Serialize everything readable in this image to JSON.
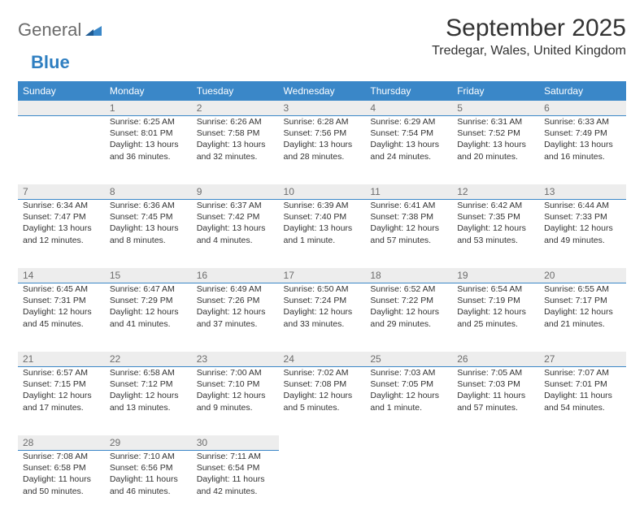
{
  "logo": {
    "word1": "General",
    "word2": "Blue",
    "word1_color": "#6b6b6b",
    "word2_color": "#2f7fc1",
    "mark_color": "#3a87c8"
  },
  "header": {
    "month_title": "September 2025",
    "location": "Tredegar, Wales, United Kingdom"
  },
  "styling": {
    "header_bg": "#3a87c8",
    "header_text_color": "#ffffff",
    "date_bg": "#ededed",
    "date_border_color": "#3a87c8",
    "date_text_color": "#6d6d6d",
    "body_text_color": "#333333",
    "page_bg": "#ffffff",
    "font_family": "Arial",
    "month_title_fontsize": 30,
    "location_fontsize": 16,
    "weekday_fontsize": 12,
    "cell_fontsize": 10.5
  },
  "weekdays": [
    "Sunday",
    "Monday",
    "Tuesday",
    "Wednesday",
    "Thursday",
    "Friday",
    "Saturday"
  ],
  "weeks": [
    [
      {
        "date": "",
        "sunrise": "",
        "sunset": "",
        "daylight": ""
      },
      {
        "date": "1",
        "sunrise": "Sunrise: 6:25 AM",
        "sunset": "Sunset: 8:01 PM",
        "daylight": "Daylight: 13 hours and 36 minutes."
      },
      {
        "date": "2",
        "sunrise": "Sunrise: 6:26 AM",
        "sunset": "Sunset: 7:58 PM",
        "daylight": "Daylight: 13 hours and 32 minutes."
      },
      {
        "date": "3",
        "sunrise": "Sunrise: 6:28 AM",
        "sunset": "Sunset: 7:56 PM",
        "daylight": "Daylight: 13 hours and 28 minutes."
      },
      {
        "date": "4",
        "sunrise": "Sunrise: 6:29 AM",
        "sunset": "Sunset: 7:54 PM",
        "daylight": "Daylight: 13 hours and 24 minutes."
      },
      {
        "date": "5",
        "sunrise": "Sunrise: 6:31 AM",
        "sunset": "Sunset: 7:52 PM",
        "daylight": "Daylight: 13 hours and 20 minutes."
      },
      {
        "date": "6",
        "sunrise": "Sunrise: 6:33 AM",
        "sunset": "Sunset: 7:49 PM",
        "daylight": "Daylight: 13 hours and 16 minutes."
      }
    ],
    [
      {
        "date": "7",
        "sunrise": "Sunrise: 6:34 AM",
        "sunset": "Sunset: 7:47 PM",
        "daylight": "Daylight: 13 hours and 12 minutes."
      },
      {
        "date": "8",
        "sunrise": "Sunrise: 6:36 AM",
        "sunset": "Sunset: 7:45 PM",
        "daylight": "Daylight: 13 hours and 8 minutes."
      },
      {
        "date": "9",
        "sunrise": "Sunrise: 6:37 AM",
        "sunset": "Sunset: 7:42 PM",
        "daylight": "Daylight: 13 hours and 4 minutes."
      },
      {
        "date": "10",
        "sunrise": "Sunrise: 6:39 AM",
        "sunset": "Sunset: 7:40 PM",
        "daylight": "Daylight: 13 hours and 1 minute."
      },
      {
        "date": "11",
        "sunrise": "Sunrise: 6:41 AM",
        "sunset": "Sunset: 7:38 PM",
        "daylight": "Daylight: 12 hours and 57 minutes."
      },
      {
        "date": "12",
        "sunrise": "Sunrise: 6:42 AM",
        "sunset": "Sunset: 7:35 PM",
        "daylight": "Daylight: 12 hours and 53 minutes."
      },
      {
        "date": "13",
        "sunrise": "Sunrise: 6:44 AM",
        "sunset": "Sunset: 7:33 PM",
        "daylight": "Daylight: 12 hours and 49 minutes."
      }
    ],
    [
      {
        "date": "14",
        "sunrise": "Sunrise: 6:45 AM",
        "sunset": "Sunset: 7:31 PM",
        "daylight": "Daylight: 12 hours and 45 minutes."
      },
      {
        "date": "15",
        "sunrise": "Sunrise: 6:47 AM",
        "sunset": "Sunset: 7:29 PM",
        "daylight": "Daylight: 12 hours and 41 minutes."
      },
      {
        "date": "16",
        "sunrise": "Sunrise: 6:49 AM",
        "sunset": "Sunset: 7:26 PM",
        "daylight": "Daylight: 12 hours and 37 minutes."
      },
      {
        "date": "17",
        "sunrise": "Sunrise: 6:50 AM",
        "sunset": "Sunset: 7:24 PM",
        "daylight": "Daylight: 12 hours and 33 minutes."
      },
      {
        "date": "18",
        "sunrise": "Sunrise: 6:52 AM",
        "sunset": "Sunset: 7:22 PM",
        "daylight": "Daylight: 12 hours and 29 minutes."
      },
      {
        "date": "19",
        "sunrise": "Sunrise: 6:54 AM",
        "sunset": "Sunset: 7:19 PM",
        "daylight": "Daylight: 12 hours and 25 minutes."
      },
      {
        "date": "20",
        "sunrise": "Sunrise: 6:55 AM",
        "sunset": "Sunset: 7:17 PM",
        "daylight": "Daylight: 12 hours and 21 minutes."
      }
    ],
    [
      {
        "date": "21",
        "sunrise": "Sunrise: 6:57 AM",
        "sunset": "Sunset: 7:15 PM",
        "daylight": "Daylight: 12 hours and 17 minutes."
      },
      {
        "date": "22",
        "sunrise": "Sunrise: 6:58 AM",
        "sunset": "Sunset: 7:12 PM",
        "daylight": "Daylight: 12 hours and 13 minutes."
      },
      {
        "date": "23",
        "sunrise": "Sunrise: 7:00 AM",
        "sunset": "Sunset: 7:10 PM",
        "daylight": "Daylight: 12 hours and 9 minutes."
      },
      {
        "date": "24",
        "sunrise": "Sunrise: 7:02 AM",
        "sunset": "Sunset: 7:08 PM",
        "daylight": "Daylight: 12 hours and 5 minutes."
      },
      {
        "date": "25",
        "sunrise": "Sunrise: 7:03 AM",
        "sunset": "Sunset: 7:05 PM",
        "daylight": "Daylight: 12 hours and 1 minute."
      },
      {
        "date": "26",
        "sunrise": "Sunrise: 7:05 AM",
        "sunset": "Sunset: 7:03 PM",
        "daylight": "Daylight: 11 hours and 57 minutes."
      },
      {
        "date": "27",
        "sunrise": "Sunrise: 7:07 AM",
        "sunset": "Sunset: 7:01 PM",
        "daylight": "Daylight: 11 hours and 54 minutes."
      }
    ],
    [
      {
        "date": "28",
        "sunrise": "Sunrise: 7:08 AM",
        "sunset": "Sunset: 6:58 PM",
        "daylight": "Daylight: 11 hours and 50 minutes."
      },
      {
        "date": "29",
        "sunrise": "Sunrise: 7:10 AM",
        "sunset": "Sunset: 6:56 PM",
        "daylight": "Daylight: 11 hours and 46 minutes."
      },
      {
        "date": "30",
        "sunrise": "Sunrise: 7:11 AM",
        "sunset": "Sunset: 6:54 PM",
        "daylight": "Daylight: 11 hours and 42 minutes."
      },
      {
        "date": "",
        "sunrise": "",
        "sunset": "",
        "daylight": ""
      },
      {
        "date": "",
        "sunrise": "",
        "sunset": "",
        "daylight": ""
      },
      {
        "date": "",
        "sunrise": "",
        "sunset": "",
        "daylight": ""
      },
      {
        "date": "",
        "sunrise": "",
        "sunset": "",
        "daylight": ""
      }
    ]
  ]
}
